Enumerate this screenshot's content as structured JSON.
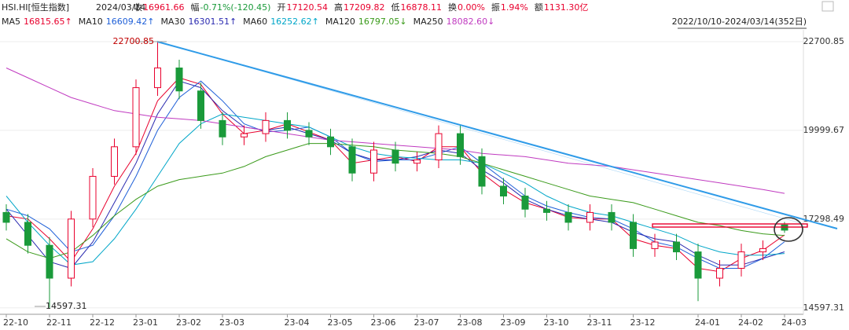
{
  "chart_data": {
    "type": "candlestick",
    "quote": {
      "symbol": "HSI.HI[恒生指数]",
      "date": "2024/03/14",
      "fields": [
        {
          "label": "收",
          "value": "16961.66"
        },
        {
          "label": "幅",
          "value": "-0.71%(-120.45)"
        },
        {
          "label": "开",
          "value": "17120.54"
        },
        {
          "label": "高",
          "value": "17209.82"
        },
        {
          "label": "低",
          "value": "16878.11"
        },
        {
          "label": "换",
          "value": "0.00%"
        },
        {
          "label": "振",
          "value": "1.94%"
        },
        {
          "label": "额",
          "value": "1131.30亿"
        }
      ]
    },
    "range_label": "2022/10/10-2024/03/14(352日)",
    "categories": [
      "22-10",
      null,
      "22-11",
      null,
      "22-12",
      null,
      "23-01",
      null,
      "23-02",
      null,
      "23-03",
      null,
      null,
      "23-04",
      null,
      "23-05",
      null,
      "23-06",
      null,
      "23-07",
      null,
      "23-08",
      null,
      "23-09",
      null,
      "23-10",
      null,
      "23-11",
      null,
      "23-12",
      null,
      null,
      "24-01",
      null,
      "24-02",
      null,
      "24-03"
    ],
    "open": [
      17500,
      17200,
      16500,
      15500,
      17300,
      18600,
      19500,
      21300,
      21900,
      21200,
      20300,
      19800,
      19900,
      20300,
      20000,
      19800,
      19500,
      18700,
      19400,
      19000,
      19100,
      19900,
      19200,
      18300,
      18000,
      17600,
      17500,
      17200,
      17500,
      17200,
      16400,
      16600,
      16300,
      15500,
      15800,
      16300,
      17120.54
    ],
    "high": [
      17750,
      17450,
      16750,
      17550,
      18850,
      19750,
      21550,
      22700.85,
      22150,
      21450,
      20550,
      20150,
      20550,
      20550,
      20250,
      20050,
      19750,
      19650,
      19650,
      19350,
      20150,
      20150,
      19450,
      18550,
      18250,
      17850,
      17750,
      17750,
      17750,
      17450,
      16850,
      16850,
      16550,
      16050,
      16550,
      16650,
      17209.82
    ],
    "low": [
      16950,
      16250,
      14597.31,
      15250,
      17050,
      18350,
      19250,
      21050,
      20950,
      20050,
      19550,
      19550,
      19650,
      19750,
      19550,
      19250,
      18450,
      18450,
      18750,
      18750,
      18850,
      18950,
      18050,
      17750,
      17350,
      17250,
      16950,
      16950,
      16950,
      16150,
      16150,
      16050,
      14800,
      15250,
      15550,
      16050,
      16878.11
    ],
    "close": [
      17200,
      16500,
      15500,
      17300,
      18600,
      19500,
      21300,
      21900,
      21200,
      20300,
      19800,
      19900,
      20300,
      20000,
      19800,
      19500,
      18700,
      19400,
      19000,
      19100,
      19900,
      19200,
      18300,
      18000,
      17600,
      17500,
      17200,
      17500,
      17200,
      16400,
      16600,
      16300,
      15500,
      15800,
      16300,
      16400,
      16961.66
    ],
    "up_color": "#e8002d",
    "down_color": "#1a9a3a",
    "series": [
      {
        "name": "MA5",
        "color": "#e8002d",
        "value_label": "16815.65↑",
        "values": [
          17400,
          17300,
          16700,
          16000,
          17000,
          18300,
          19300,
          20900,
          21600,
          21400,
          20500,
          19900,
          20000,
          20200,
          19950,
          19700,
          19000,
          19100,
          19200,
          19050,
          19500,
          19500,
          18700,
          18200,
          17800,
          17600,
          17350,
          17300,
          17300,
          16700,
          16500,
          16400,
          15800,
          15700,
          16100,
          16350,
          16815.65
        ]
      },
      {
        "name": "MA10",
        "color": "#1e5fd8",
        "value_label": "16609.42↑",
        "values": [
          17600,
          17400,
          17000,
          16300,
          16500,
          17400,
          18600,
          20000,
          21000,
          21500,
          20900,
          20200,
          19950,
          20000,
          20100,
          19800,
          19300,
          19050,
          19100,
          19100,
          19300,
          19500,
          19000,
          18500,
          18000,
          17700,
          17500,
          17350,
          17300,
          17000,
          16600,
          16450,
          16100,
          15800,
          15800,
          16100,
          16609.42
        ]
      },
      {
        "name": "MA30",
        "color": "#2a2ab0",
        "value_label": "16301.51↑",
        "values": [
          17600,
          16800,
          16000,
          15800,
          16600,
          17800,
          19000,
          20500,
          21500,
          21300,
          20600,
          20100,
          20000,
          20100,
          19900,
          19700,
          19300,
          19100,
          19100,
          19200,
          19400,
          19300,
          18800,
          18400,
          17900,
          17600,
          17400,
          17300,
          17200,
          16900,
          16700,
          16600,
          16200,
          15900,
          15900,
          16100,
          16301.51
        ]
      },
      {
        "name": "MA60",
        "color": "#00a6c8",
        "value_label": "16252.62↑",
        "values": [
          18000,
          17200,
          16500,
          15900,
          16000,
          16700,
          17600,
          18600,
          19600,
          20200,
          20500,
          20400,
          20300,
          20200,
          20100,
          19800,
          19500,
          19300,
          19200,
          19150,
          19100,
          19100,
          19000,
          18700,
          18400,
          18000,
          17700,
          17500,
          17400,
          17200,
          17000,
          16800,
          16500,
          16300,
          16200,
          16200,
          16252.62
        ]
      },
      {
        "name": "MA120",
        "color": "#3a9a1a",
        "value_label": "16797.05↓",
        "values": [
          16700,
          16300,
          16100,
          16300,
          16800,
          17400,
          17900,
          18300,
          18500,
          18600,
          18700,
          18900,
          19200,
          19400,
          19600,
          19600,
          19550,
          19500,
          19400,
          19350,
          19300,
          19200,
          19000,
          18800,
          18600,
          18400,
          18200,
          18000,
          17900,
          17800,
          17600,
          17400,
          17200,
          17100,
          16950,
          16850,
          16797.05
        ]
      },
      {
        "name": "MA250",
        "color": "#c03ac0",
        "value_label": "18082.60↓",
        "values": [
          21900,
          21600,
          21300,
          21000,
          20800,
          20600,
          20500,
          20400,
          20350,
          20300,
          20200,
          20100,
          20000,
          19900,
          19800,
          19700,
          19650,
          19600,
          19550,
          19500,
          19450,
          19400,
          19300,
          19250,
          19200,
          19100,
          19000,
          18950,
          18900,
          18800,
          18700,
          18600,
          18500,
          18400,
          18300,
          18200,
          18082.6
        ]
      }
    ],
    "annotations": [
      {
        "text": "22700.85"
      },
      {
        "text": "14597.31"
      }
    ],
    "ylim": [
      14400,
      23060
    ],
    "yticks": [
      14597.31,
      17298.49,
      19999.67,
      22700.85
    ],
    "grid": true
  }
}
